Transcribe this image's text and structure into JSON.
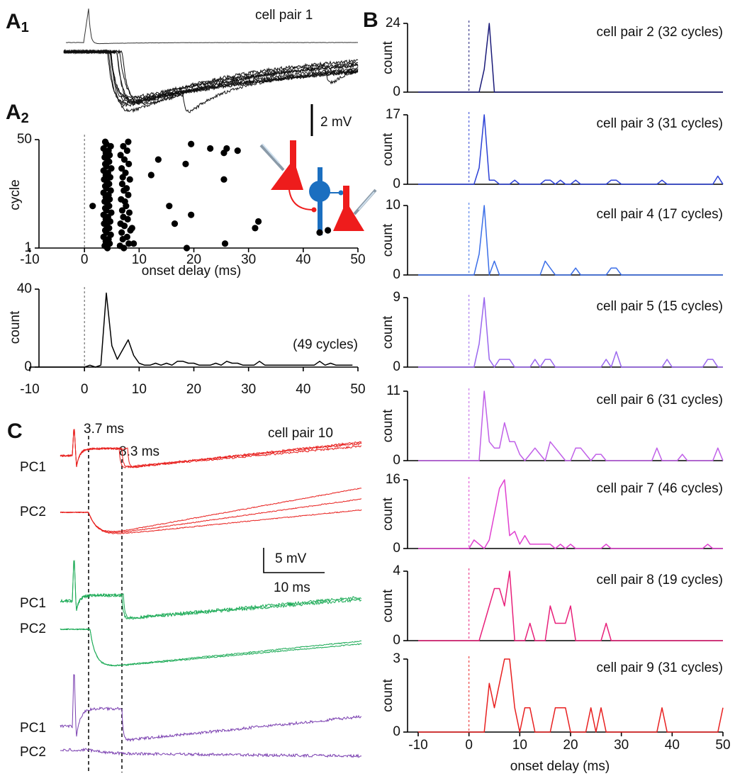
{
  "panels": {
    "a1": {
      "letter": "A",
      "sub": "1"
    },
    "a2": {
      "letter": "A",
      "sub": "2"
    },
    "b": "B",
    "c": "C"
  },
  "a1": {
    "title": "cell pair 1",
    "scale_label": "2 mV"
  },
  "c": {
    "title": "cell pair 10",
    "markers": [
      "3.7 ms",
      "8.3 ms"
    ],
    "scale_labels": [
      "5 mV",
      "10 ms"
    ],
    "trace_labels": [
      "PC1",
      "PC2",
      "PC1",
      "PC2",
      "PC1",
      "PC2"
    ]
  },
  "chart_data": [
    {
      "type": "scatter",
      "xlabel": "onset delay (ms)",
      "ylabel": "cycle",
      "color": "#000000",
      "x": [
        4.2,
        3.7,
        4.6,
        3.9,
        4.4,
        3.5,
        4.8,
        4.0,
        3.8,
        4.5,
        4.1,
        3.6,
        4.7,
        3.9,
        4.3,
        3.5,
        4.9,
        4.0,
        3.8,
        4.5,
        4.2,
        3.7,
        4.6,
        3.9,
        4.4,
        3.5,
        4.8,
        4.0,
        3.8,
        4.5,
        4.1,
        3.6,
        4.7,
        3.9,
        4.3,
        3.5,
        4.9,
        4.0,
        3.8,
        4.5,
        4.2,
        3.7,
        4.6,
        3.9,
        4.4,
        3.5,
        4.8,
        4.0,
        3.8,
        7.2,
        6.5,
        8.1,
        7.0,
        7.8,
        6.8,
        8.4,
        7.3,
        6.6,
        7.9,
        7.1,
        8.2,
        6.9,
        7.6,
        7.4,
        6.7,
        8.0,
        7.2,
        7.7,
        6.9,
        8.3,
        7.0,
        7.5,
        6.8,
        8.1,
        7.3,
        6.6,
        7.8,
        7.1,
        8.0,
        9.0,
        8.7,
        1.5,
        12.2,
        13.5,
        15.5,
        16.5,
        18.5,
        19.5,
        18.7,
        25.7,
        19.5,
        23,
        26,
        28,
        25.5,
        25.5,
        31.8,
        31.2,
        43,
        44.5
      ],
      "y": [
        1,
        2,
        3,
        4,
        5,
        6,
        7,
        8,
        9,
        10,
        11,
        12,
        13,
        14,
        15,
        16,
        17,
        18,
        19,
        20,
        21,
        22,
        23,
        24,
        25,
        26,
        27,
        28,
        29,
        30,
        31,
        32,
        33,
        34,
        35,
        36,
        37,
        38,
        39,
        40,
        41,
        42,
        43,
        44,
        45,
        46,
        47,
        48,
        49,
        1,
        2,
        3,
        5,
        6,
        8,
        9,
        11,
        12,
        14,
        15,
        17,
        18,
        20,
        22,
        23,
        25,
        27,
        28,
        30,
        32,
        33,
        35,
        37,
        39,
        41,
        43,
        45,
        47,
        49,
        3,
        10,
        20,
        34,
        41,
        20,
        12,
        39,
        16,
        1,
        3,
        48,
        46,
        46,
        45,
        44,
        32,
        13,
        10,
        8,
        9
      ],
      "xlim": [
        -10,
        50
      ],
      "ylim": [
        1,
        50
      ],
      "xticks": [
        -10,
        0,
        10,
        20,
        30,
        40,
        50
      ],
      "yticks": [
        1,
        50
      ]
    },
    {
      "type": "line",
      "ylabel": "count",
      "annotation": "(49 cycles)",
      "color": "#000000",
      "x": [
        -10,
        0,
        1,
        2,
        3,
        4,
        5,
        6,
        7,
        8,
        9,
        10,
        11,
        12,
        13,
        14,
        15,
        16,
        17,
        18,
        19,
        20,
        21,
        22,
        23,
        24,
        25,
        26,
        27,
        28,
        29,
        30,
        31,
        32,
        33,
        34,
        35,
        36,
        37,
        38,
        39,
        40,
        41,
        42,
        43,
        44,
        45,
        46,
        47,
        48,
        49
      ],
      "values": [
        0,
        0,
        1,
        0,
        1,
        38,
        11,
        4,
        9,
        14,
        6,
        2,
        1,
        1,
        2,
        1,
        2,
        1,
        3,
        3,
        2,
        2,
        1,
        1,
        1,
        2,
        1,
        3,
        2,
        2,
        1,
        1,
        1,
        3,
        1,
        1,
        1,
        1,
        1,
        1,
        1,
        1,
        1,
        1,
        3,
        1,
        2,
        1,
        1,
        1,
        1
      ],
      "xlim": [
        -10,
        50
      ],
      "ylim": [
        0,
        40
      ],
      "xticks": [
        -10,
        0,
        10,
        20,
        30,
        40,
        50
      ],
      "yticks": [
        0,
        40
      ]
    },
    {
      "type": "line",
      "title": "cell pair 2  (32 cycles)",
      "ylabel": "count",
      "color": "#1a1a78",
      "x": [
        -10,
        0,
        1,
        2,
        3,
        4,
        5,
        6,
        7,
        8,
        9,
        10,
        11,
        12,
        13,
        14,
        15,
        16,
        17,
        18,
        19,
        20,
        21,
        22,
        23,
        24,
        25,
        26,
        27,
        28,
        29,
        30,
        31,
        32,
        33,
        34,
        35,
        36,
        37,
        38,
        39,
        40,
        41,
        42,
        43,
        44,
        45,
        46,
        47,
        48,
        49,
        50
      ],
      "values": [
        0,
        0,
        0,
        0,
        8,
        24,
        0,
        0,
        0,
        0,
        0,
        0,
        0,
        0,
        0,
        0,
        0,
        0,
        0,
        0,
        0,
        0,
        0,
        0,
        0,
        0,
        0,
        0,
        0,
        0,
        0,
        0,
        0,
        0,
        0,
        0,
        0,
        0,
        0,
        0,
        0,
        0,
        0,
        0,
        0,
        0,
        0,
        0,
        0,
        0,
        0,
        0
      ],
      "xlim": [
        -10,
        50
      ],
      "ylim": [
        0,
        24
      ],
      "yticks": [
        0,
        24
      ]
    },
    {
      "type": "line",
      "title": "cell pair 3 (31 cycles)",
      "ylabel": "count",
      "color": "#2b40d6",
      "x": [
        -10,
        0,
        1,
        2,
        3,
        4,
        5,
        6,
        7,
        8,
        9,
        10,
        11,
        12,
        13,
        14,
        15,
        16,
        17,
        18,
        19,
        20,
        21,
        22,
        23,
        24,
        25,
        26,
        27,
        28,
        29,
        30,
        31,
        32,
        33,
        34,
        35,
        36,
        37,
        38,
        39,
        40,
        41,
        42,
        43,
        44,
        45,
        46,
        47,
        48,
        49,
        50
      ],
      "values": [
        0,
        0,
        0,
        4,
        17,
        1,
        1,
        0,
        0,
        0,
        1,
        0,
        0,
        0,
        0,
        0,
        1,
        1,
        0,
        1,
        0,
        0,
        1,
        0,
        0,
        0,
        0,
        0,
        0,
        1,
        1,
        0,
        0,
        0,
        0,
        0,
        0,
        0,
        0,
        1,
        0,
        0,
        0,
        0,
        0,
        0,
        0,
        0,
        0,
        0,
        2,
        0
      ],
      "xlim": [
        -10,
        50
      ],
      "ylim": [
        0,
        17
      ],
      "yticks": [
        0,
        17
      ]
    },
    {
      "type": "line",
      "title": "cell pair 4 (17 cycles)",
      "ylabel": "count",
      "color": "#3a6ee8",
      "x": [
        -10,
        0,
        1,
        2,
        3,
        4,
        5,
        6,
        7,
        8,
        9,
        10,
        11,
        12,
        13,
        14,
        15,
        16,
        17,
        18,
        19,
        20,
        21,
        22,
        23,
        24,
        25,
        26,
        27,
        28,
        29,
        30,
        31,
        32,
        33,
        34,
        35,
        36,
        37,
        38,
        39,
        40,
        41,
        42,
        43,
        44,
        45,
        46,
        47,
        48,
        49,
        50
      ],
      "values": [
        0,
        0,
        0,
        3,
        10,
        0,
        2,
        0,
        0,
        0,
        0,
        0,
        0,
        0,
        0,
        0,
        2,
        1,
        0,
        0,
        0,
        0,
        1,
        0,
        0,
        0,
        0,
        0,
        0,
        1,
        1,
        0,
        0,
        0,
        0,
        0,
        0,
        0,
        0,
        0,
        0,
        0,
        0,
        0,
        0,
        0,
        0,
        0,
        0,
        0,
        0,
        0
      ],
      "xlim": [
        -10,
        50
      ],
      "ylim": [
        0,
        10
      ],
      "yticks": [
        0,
        10
      ]
    },
    {
      "type": "line",
      "title": "cell pair 5 (15 cycles)",
      "ylabel": "count",
      "color": "#9a66ee",
      "x": [
        -10,
        0,
        1,
        2,
        3,
        4,
        5,
        6,
        7,
        8,
        9,
        10,
        11,
        12,
        13,
        14,
        15,
        16,
        17,
        18,
        19,
        20,
        21,
        22,
        23,
        24,
        25,
        26,
        27,
        28,
        29,
        30,
        31,
        32,
        33,
        34,
        35,
        36,
        37,
        38,
        39,
        40,
        41,
        42,
        43,
        44,
        45,
        46,
        47,
        48,
        49,
        50
      ],
      "values": [
        0,
        0,
        0,
        3,
        9,
        1,
        0,
        1,
        1,
        1,
        0,
        0,
        0,
        0,
        1,
        0,
        1,
        1,
        0,
        0,
        0,
        0,
        0,
        0,
        0,
        0,
        0,
        0,
        1,
        0,
        2,
        0,
        0,
        0,
        0,
        0,
        0,
        0,
        0,
        0,
        1,
        0,
        0,
        0,
        0,
        0,
        0,
        0,
        1,
        1,
        0,
        0
      ],
      "xlim": [
        -10,
        50
      ],
      "ylim": [
        0,
        9
      ],
      "yticks": [
        0,
        9
      ]
    },
    {
      "type": "line",
      "title": "cell pair 6 (31 cycles)",
      "ylabel": "count",
      "color": "#c060e8",
      "x": [
        -10,
        0,
        1,
        2,
        3,
        4,
        5,
        6,
        7,
        8,
        9,
        10,
        11,
        12,
        13,
        14,
        15,
        16,
        17,
        18,
        19,
        20,
        21,
        22,
        23,
        24,
        25,
        26,
        27,
        28,
        29,
        30,
        31,
        32,
        33,
        34,
        35,
        36,
        37,
        38,
        39,
        40,
        41,
        42,
        43,
        44,
        45,
        46,
        47,
        48,
        49,
        50
      ],
      "values": [
        0,
        0,
        0,
        0,
        11,
        3,
        2,
        2,
        6,
        3,
        3,
        1,
        0,
        1,
        2,
        1,
        0,
        3,
        2,
        1,
        0,
        0,
        2,
        2,
        1,
        0,
        1,
        1,
        0,
        0,
        0,
        0,
        0,
        0,
        0,
        0,
        0,
        0,
        2,
        0,
        0,
        0,
        0,
        1,
        0,
        0,
        0,
        0,
        0,
        0,
        2,
        0
      ],
      "xlim": [
        -10,
        50
      ],
      "ylim": [
        0,
        11
      ],
      "yticks": [
        0,
        11
      ]
    },
    {
      "type": "line",
      "title": "cell pair 7 (46 cycles)",
      "ylabel": "count",
      "color": "#e040d0",
      "x": [
        -10,
        0,
        1,
        2,
        3,
        4,
        5,
        6,
        7,
        8,
        9,
        10,
        11,
        12,
        13,
        14,
        15,
        16,
        17,
        18,
        19,
        20,
        21,
        22,
        23,
        24,
        25,
        26,
        27,
        28,
        29,
        30,
        31,
        32,
        33,
        34,
        35,
        36,
        37,
        38,
        39,
        40,
        41,
        42,
        43,
        44,
        45,
        46,
        47,
        48,
        49,
        50
      ],
      "values": [
        0,
        0,
        2,
        1,
        0,
        2,
        8,
        14,
        16,
        3,
        4,
        1,
        3,
        1,
        1,
        1,
        1,
        1,
        0,
        1,
        0,
        1,
        0,
        0,
        0,
        0,
        0,
        0,
        1,
        0,
        0,
        0,
        0,
        0,
        0,
        0,
        0,
        0,
        0,
        0,
        0,
        0,
        0,
        0,
        0,
        0,
        0,
        0,
        1,
        0,
        0,
        0
      ],
      "xlim": [
        -10,
        50
      ],
      "ylim": [
        0,
        16
      ],
      "yticks": [
        0,
        16
      ]
    },
    {
      "type": "line",
      "title": "cell pair 8 (19 cycles)",
      "ylabel": "count",
      "color": "#e8207a",
      "x": [
        -10,
        0,
        1,
        2,
        3,
        4,
        5,
        6,
        7,
        8,
        9,
        10,
        11,
        12,
        13,
        14,
        15,
        16,
        17,
        18,
        19,
        20,
        21,
        22,
        23,
        24,
        25,
        26,
        27,
        28,
        29,
        30,
        31,
        32,
        33,
        34,
        35,
        36,
        37,
        38,
        39,
        40,
        41,
        42,
        43,
        44,
        45,
        46,
        47,
        48,
        49,
        50
      ],
      "values": [
        0,
        0,
        0,
        0,
        1,
        2,
        3,
        3,
        2,
        4,
        0,
        0,
        0,
        1,
        0,
        0,
        0,
        2,
        1,
        1,
        1,
        2,
        0,
        0,
        0,
        0,
        0,
        0,
        1,
        0,
        0,
        0,
        0,
        0,
        0,
        0,
        0,
        0,
        0,
        0,
        0,
        0,
        0,
        0,
        0,
        0,
        0,
        0,
        0,
        0,
        0,
        0
      ],
      "xlim": [
        -10,
        50
      ],
      "ylim": [
        0,
        4
      ],
      "yticks": [
        0,
        4
      ]
    },
    {
      "type": "line",
      "title": "cell pair 9 (31 cycles)",
      "ylabel": "count",
      "xlabel": "onset delay  (ms)",
      "color": "#e82020",
      "x": [
        -10,
        0,
        1,
        2,
        3,
        4,
        5,
        6,
        7,
        8,
        9,
        10,
        11,
        12,
        13,
        14,
        15,
        16,
        17,
        18,
        19,
        20,
        21,
        22,
        23,
        24,
        25,
        26,
        27,
        28,
        29,
        30,
        31,
        32,
        33,
        34,
        35,
        36,
        37,
        38,
        39,
        40,
        41,
        42,
        43,
        44,
        45,
        46,
        47,
        48,
        49,
        50
      ],
      "values": [
        0,
        0,
        0,
        0,
        0,
        2,
        1,
        2,
        3,
        3,
        1,
        0,
        1,
        1,
        0,
        0,
        0,
        0,
        1,
        1,
        1,
        0,
        0,
        0,
        0,
        1,
        0,
        1,
        0,
        0,
        0,
        0,
        0,
        0,
        0,
        0,
        0,
        0,
        0,
        1,
        0,
        0,
        0,
        0,
        0,
        0,
        0,
        0,
        0,
        0,
        0,
        1
      ],
      "xlim": [
        -10,
        50
      ],
      "ylim": [
        0,
        3
      ],
      "xticks": [
        -10,
        0,
        10,
        20,
        30,
        40,
        50
      ],
      "yticks": [
        0,
        3
      ]
    }
  ]
}
